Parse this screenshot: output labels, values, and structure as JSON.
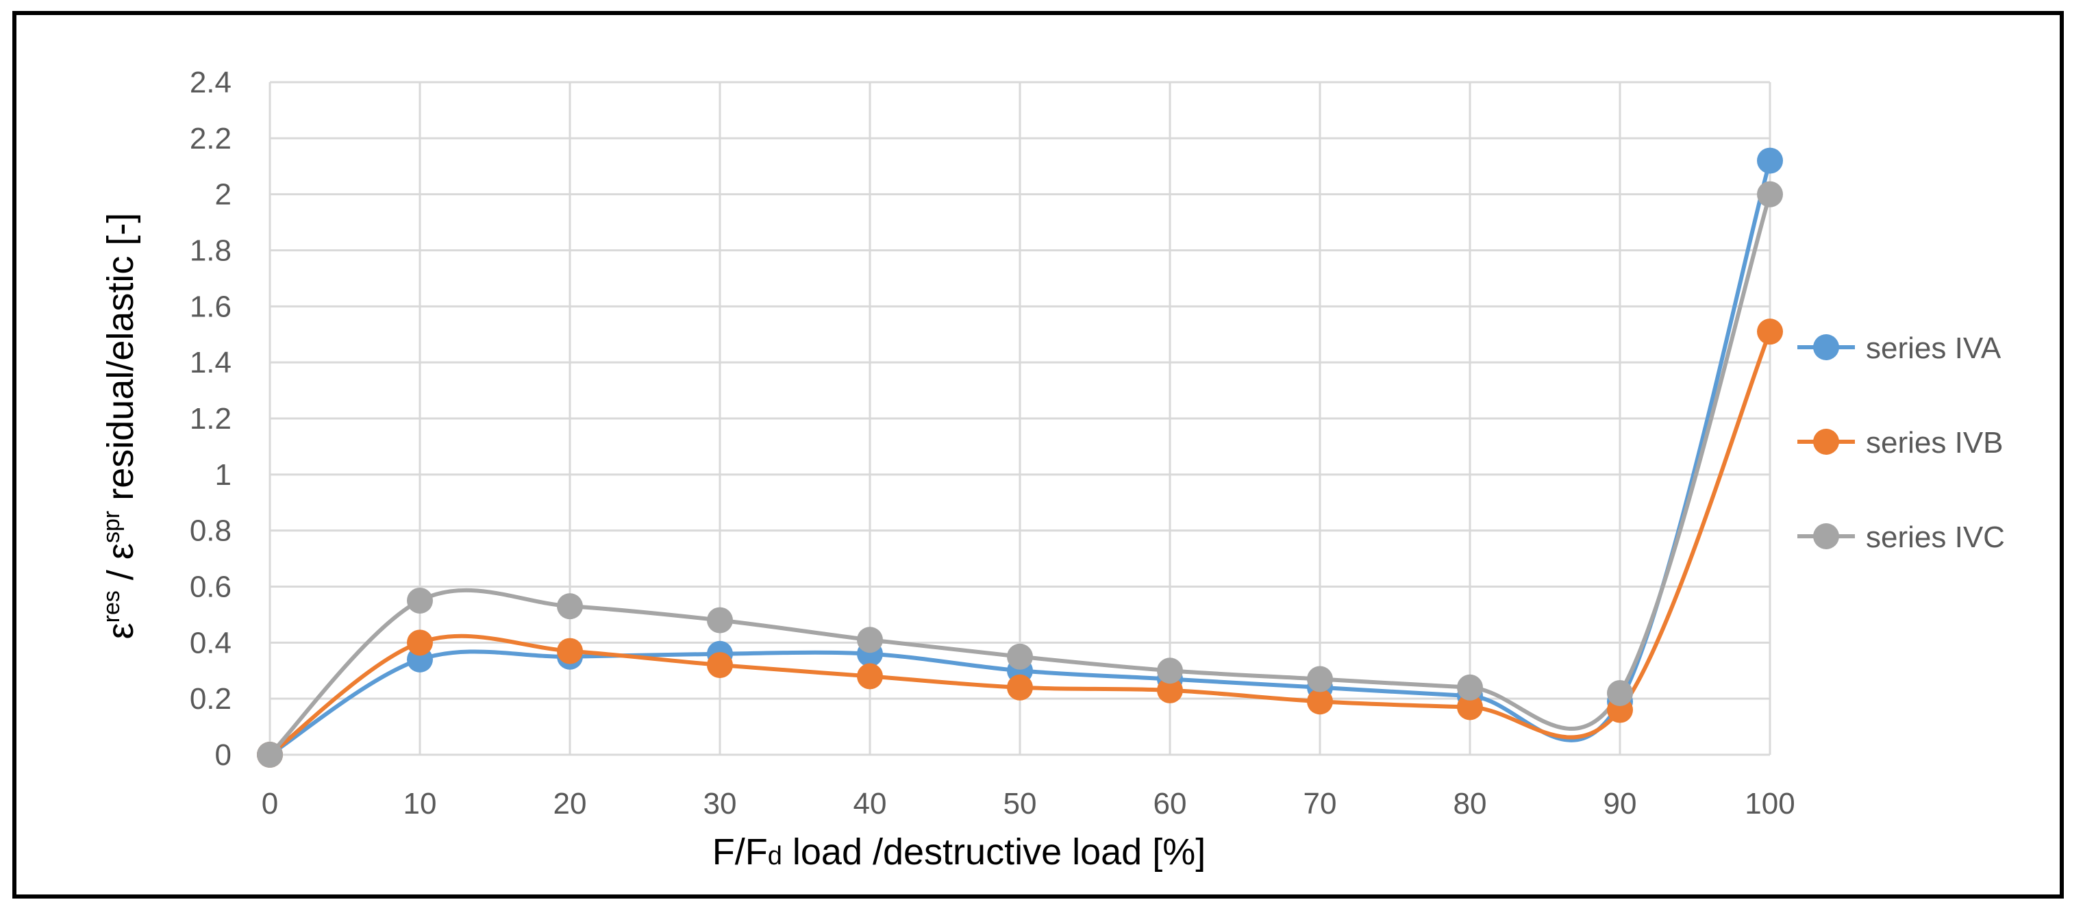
{
  "chart_data": {
    "type": "line",
    "smooth": true,
    "title": "",
    "xlabel_parts": [
      "F/F",
      "d",
      "  load /destructive load [%]"
    ],
    "ylabel_parts": [
      "ε",
      "res",
      " / ε",
      "spr",
      " residual/elastic [-]"
    ],
    "x": [
      0,
      10,
      20,
      30,
      40,
      50,
      60,
      70,
      80,
      90,
      100
    ],
    "xlim": [
      0,
      100
    ],
    "ylim": [
      0,
      2.4
    ],
    "x_ticks": [
      "0",
      "10",
      "20",
      "30",
      "40",
      "50",
      "60",
      "70",
      "80",
      "90",
      "100"
    ],
    "y_ticks": [
      "0",
      "0.2",
      "0.4",
      "0.6",
      "0.8",
      "1",
      "1.2",
      "1.4",
      "1.6",
      "1.8",
      "2",
      "2.2",
      "2.4"
    ],
    "grid": true,
    "legend_position": "right",
    "series": [
      {
        "name": "series IVA",
        "color": "#5B9BD5",
        "values": [
          0,
          0.34,
          0.35,
          0.36,
          0.36,
          0.3,
          0.27,
          0.24,
          0.21,
          0.19,
          2.12
        ]
      },
      {
        "name": "series IVB",
        "color": "#ED7D31",
        "values": [
          0,
          0.4,
          0.37,
          0.32,
          0.28,
          0.24,
          0.23,
          0.19,
          0.17,
          0.16,
          1.51
        ]
      },
      {
        "name": "series IVC",
        "color": "#A5A5A5",
        "values": [
          0,
          0.55,
          0.53,
          0.48,
          0.41,
          0.35,
          0.3,
          0.27,
          0.24,
          0.22,
          2.0
        ]
      }
    ]
  }
}
